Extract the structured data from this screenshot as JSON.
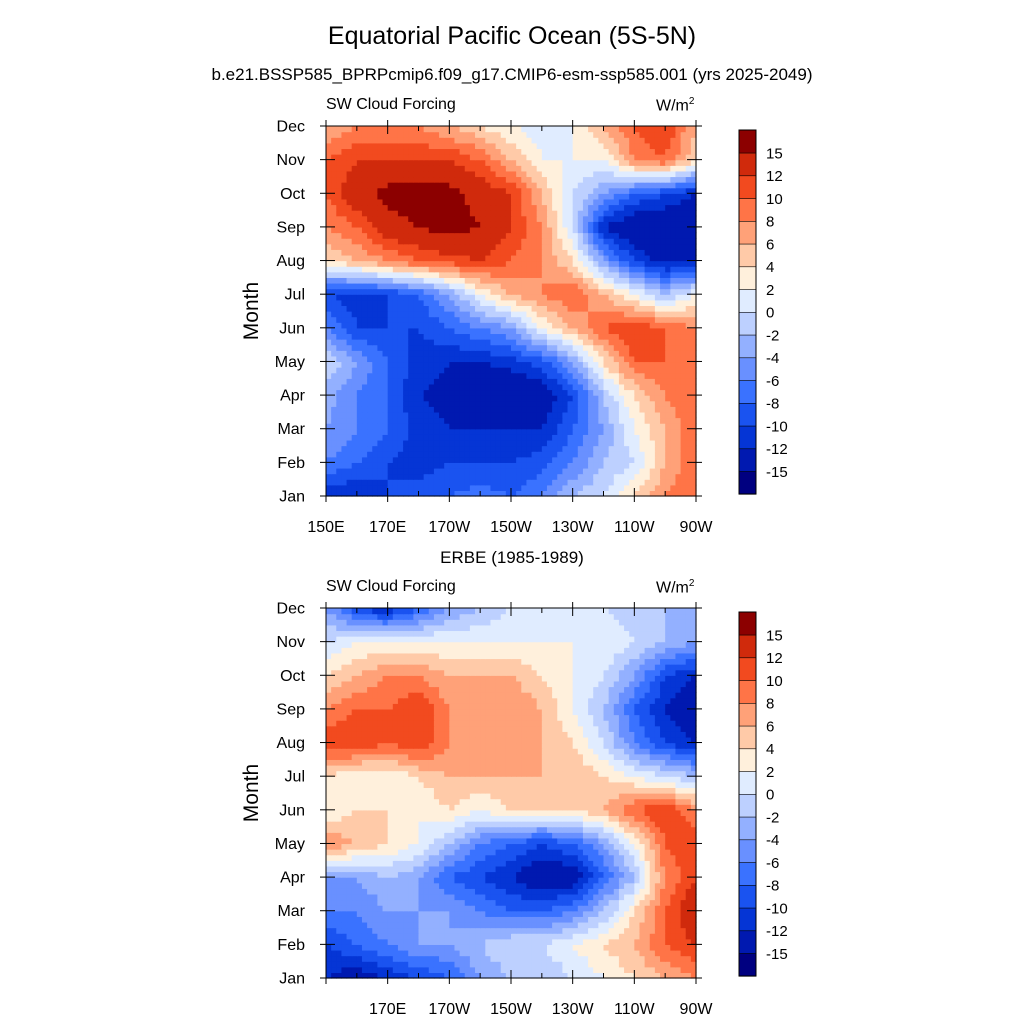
{
  "title": "Equatorial Pacific Ocean (5S-5N)",
  "subtitle": "b.e21.BSSP585_BPRPcmip6.f09_g17.CMIP6-esm-ssp585.001 (yrs 2025-2049)",
  "colorbar": {
    "labels": [
      "15",
      "12",
      "10",
      "8",
      "6",
      "4",
      "2",
      "0",
      "-2",
      "-4",
      "-6",
      "-8",
      "-10",
      "-12",
      "-15"
    ],
    "levels": [
      -15,
      -12,
      -10,
      -8,
      -6,
      -4,
      -2,
      0,
      2,
      4,
      6,
      8,
      10,
      12,
      15
    ],
    "colors": [
      "#000080",
      "#0019b0",
      "#0535d5",
      "#1a53f0",
      "#3a72ff",
      "#6990ff",
      "#93b0ff",
      "#bdd0ff",
      "#e0ecff",
      "#fff0dc",
      "#ffcaa8",
      "#ffa178",
      "#ff7447",
      "#f24a1f",
      "#d02a0c",
      "#8c0000"
    ]
  },
  "chart_data": [
    {
      "type": "heatmap",
      "title": "",
      "left_string": "SW Cloud Forcing",
      "units": "W/m",
      "units_sup": "2",
      "ylabel": "Month",
      "x": [
        "150E",
        "170E",
        "170W",
        "150W",
        "130W",
        "110W",
        "90W"
      ],
      "x_values": [
        150,
        170,
        190,
        210,
        230,
        250,
        270
      ],
      "y": [
        "Jan",
        "Feb",
        "Mar",
        "Apr",
        "May",
        "Jun",
        "Jul",
        "Aug",
        "Sep",
        "Oct",
        "Nov",
        "Dec"
      ],
      "grid_x": [
        150,
        160,
        170,
        180,
        190,
        200,
        210,
        220,
        230,
        240,
        250,
        260,
        270
      ],
      "values": [
        [
          -12,
          -12,
          -10,
          -9,
          -8,
          -7,
          -8,
          -6,
          -2,
          0,
          4,
          8,
          10
        ],
        [
          -6,
          -8,
          -10,
          -11,
          -10,
          -10,
          -10,
          -9,
          -6,
          -2,
          0,
          6,
          10
        ],
        [
          -4,
          -6,
          -8,
          -11,
          -12,
          -12,
          -12,
          -12,
          -8,
          -4,
          2,
          6,
          10
        ],
        [
          -3,
          -6,
          -8,
          -12,
          -13,
          -15,
          -15,
          -14,
          -10,
          -2,
          4,
          8,
          10
        ],
        [
          0,
          -4,
          -8,
          -11,
          -12,
          -12,
          -11,
          -9,
          -4,
          4,
          10,
          10,
          8
        ],
        [
          -6,
          -10,
          -10,
          -10,
          -8,
          -6,
          -4,
          2,
          6,
          10,
          12,
          10,
          8
        ],
        [
          -10,
          -11,
          -10,
          -8,
          -4,
          2,
          6,
          8,
          10,
          6,
          2,
          -2,
          2
        ],
        [
          4,
          6,
          8,
          10,
          11,
          12,
          10,
          8,
          4,
          -4,
          -10,
          -13,
          -12
        ],
        [
          8,
          10,
          14,
          15,
          16,
          15,
          12,
          8,
          0,
          -12,
          -15,
          -15,
          -15
        ],
        [
          10,
          14,
          16,
          16,
          16,
          14,
          12,
          6,
          0,
          -4,
          -8,
          -10,
          -12
        ],
        [
          10,
          12,
          12,
          12,
          12,
          10,
          6,
          2,
          2,
          2,
          8,
          10,
          4
        ],
        [
          6,
          8,
          8,
          8,
          6,
          4,
          2,
          1,
          2,
          6,
          10,
          12,
          6
        ]
      ]
    },
    {
      "type": "heatmap",
      "title": "ERBE (1985-1989)",
      "left_string": "SW Cloud Forcing",
      "units": "W/m",
      "units_sup": "2",
      "ylabel": "Month",
      "x": [
        "170E",
        "170W",
        "150W",
        "130W",
        "110W",
        "90W"
      ],
      "x_values": [
        170,
        190,
        210,
        230,
        250,
        270
      ],
      "y": [
        "Jan",
        "Feb",
        "Mar",
        "Apr",
        "May",
        "Jun",
        "Jul",
        "Aug",
        "Sep",
        "Oct",
        "Nov",
        "Dec"
      ],
      "grid_x": [
        150,
        160,
        170,
        180,
        190,
        200,
        210,
        220,
        230,
        240,
        250,
        260,
        270
      ],
      "values": [
        [
          -12,
          -14,
          -12,
          -10,
          -8,
          -4,
          -2,
          -2,
          0,
          2,
          4,
          6,
          8
        ],
        [
          -10,
          -8,
          -6,
          -4,
          -4,
          -2,
          0,
          0,
          2,
          4,
          6,
          10,
          12
        ],
        [
          -6,
          -6,
          -4,
          -4,
          -4,
          -6,
          -8,
          -8,
          -6,
          -2,
          4,
          10,
          15
        ],
        [
          -4,
          -4,
          -2,
          -4,
          -8,
          -10,
          -12,
          -15,
          -14,
          -8,
          -2,
          8,
          12
        ],
        [
          8,
          6,
          4,
          2,
          -2,
          -6,
          -8,
          -10,
          -8,
          -4,
          2,
          10,
          12
        ],
        [
          2,
          4,
          4,
          2,
          4,
          2,
          4,
          4,
          4,
          6,
          10,
          12,
          8
        ],
        [
          4,
          2,
          2,
          4,
          6,
          6,
          6,
          6,
          6,
          4,
          2,
          0,
          -2
        ],
        [
          12,
          12,
          10,
          12,
          8,
          6,
          8,
          6,
          4,
          0,
          -6,
          -10,
          -12
        ],
        [
          8,
          10,
          10,
          12,
          8,
          8,
          8,
          6,
          2,
          -2,
          -8,
          -12,
          -15
        ],
        [
          4,
          6,
          8,
          8,
          6,
          6,
          6,
          4,
          2,
          0,
          -4,
          -10,
          -12
        ],
        [
          0,
          2,
          2,
          2,
          2,
          2,
          2,
          2,
          2,
          2,
          0,
          -2,
          -4
        ],
        [
          -4,
          -10,
          -12,
          -8,
          -4,
          -2,
          0,
          0,
          0,
          0,
          -2,
          -2,
          -4
        ]
      ]
    }
  ]
}
